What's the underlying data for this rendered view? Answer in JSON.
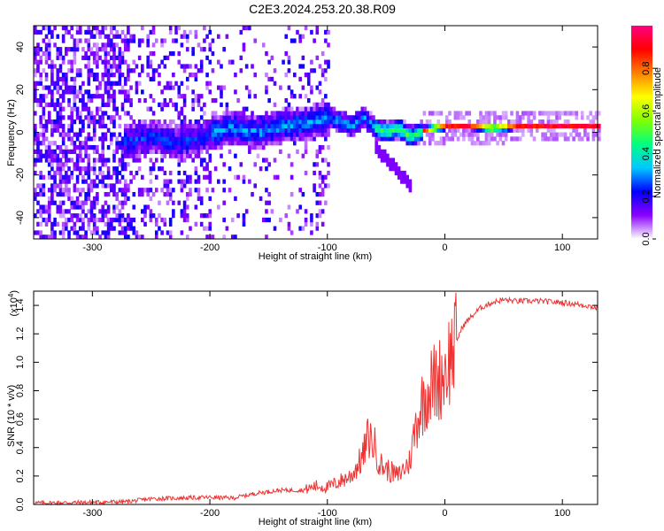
{
  "title": "C2E3.2024.253.20.38.R09",
  "chart_data": [
    {
      "type": "heatmap",
      "xlabel": "Height of straight line (km)",
      "ylabel": "Frequency (Hz)",
      "xlim": [
        -350,
        130
      ],
      "ylim": [
        -50,
        50
      ],
      "xticks": [
        -300,
        -200,
        -100,
        0,
        100
      ],
      "yticks": [
        -40,
        -20,
        0,
        20,
        40
      ],
      "colorbar": {
        "label": "Normalized spectral amplitude",
        "range": [
          0,
          1
        ],
        "ticks": [
          "0.0",
          "0.2",
          "0.4",
          "0.6",
          "0.8"
        ],
        "colors": [
          "#ffffff",
          "#8a00ff",
          "#0000ff",
          "#00c8ff",
          "#00ff80",
          "#80ff00",
          "#ffff00",
          "#ff8000",
          "#ff0000",
          "#ff0080"
        ]
      },
      "ridge": {
        "x": [
          -270,
          -250,
          -230,
          -210,
          -200,
          -180,
          -160,
          -140,
          -120,
          -100,
          -90,
          -80,
          -70,
          -60,
          -50,
          -40,
          -30,
          -20,
          -10,
          0,
          20,
          40,
          60,
          80,
          100,
          130
        ],
        "y": [
          -5,
          -3,
          -6,
          -4,
          -1,
          1,
          -1,
          2,
          3,
          6,
          4,
          2,
          6,
          1,
          -1,
          1,
          -3,
          0,
          1,
          2,
          2,
          1,
          2,
          2,
          2,
          2
        ]
      }
    },
    {
      "type": "line",
      "xlabel": "Height of straight line (km)",
      "ylabel": "SNR (10 * v/v)",
      "y_multiplier": "(x10",
      "y_multiplier_exp": "4",
      "xlim": [
        -350,
        130
      ],
      "ylim": [
        0,
        1.5
      ],
      "xticks": [
        -300,
        -200,
        -100,
        0,
        100
      ],
      "yticks": [
        "0.0",
        "0.2",
        "0.4",
        "0.6",
        "0.8",
        "1.0",
        "1.2",
        "1.4"
      ],
      "color": "#ee3333",
      "series": [
        {
          "x": [
            -350,
            -300,
            -270,
            -250,
            -200,
            -180,
            -160,
            -140,
            -120,
            -110,
            -100,
            -90,
            -80,
            -70,
            -65,
            -60,
            -55,
            -50,
            -40,
            -30,
            -25,
            -20,
            -15,
            -10,
            -5,
            0,
            5,
            10,
            15,
            20,
            30,
            40,
            50,
            60,
            80,
            100,
            110,
            120,
            130
          ],
          "y": [
            0.01,
            0.015,
            0.02,
            0.04,
            0.05,
            0.045,
            0.08,
            0.1,
            0.1,
            0.13,
            0.12,
            0.16,
            0.2,
            0.33,
            0.48,
            0.42,
            0.28,
            0.25,
            0.2,
            0.3,
            0.55,
            0.7,
            0.8,
            0.85,
            0.88,
            0.95,
            1.05,
            1.15,
            1.25,
            1.3,
            1.38,
            1.42,
            1.44,
            1.43,
            1.43,
            1.42,
            1.41,
            1.4,
            1.38
          ]
        }
      ]
    }
  ]
}
